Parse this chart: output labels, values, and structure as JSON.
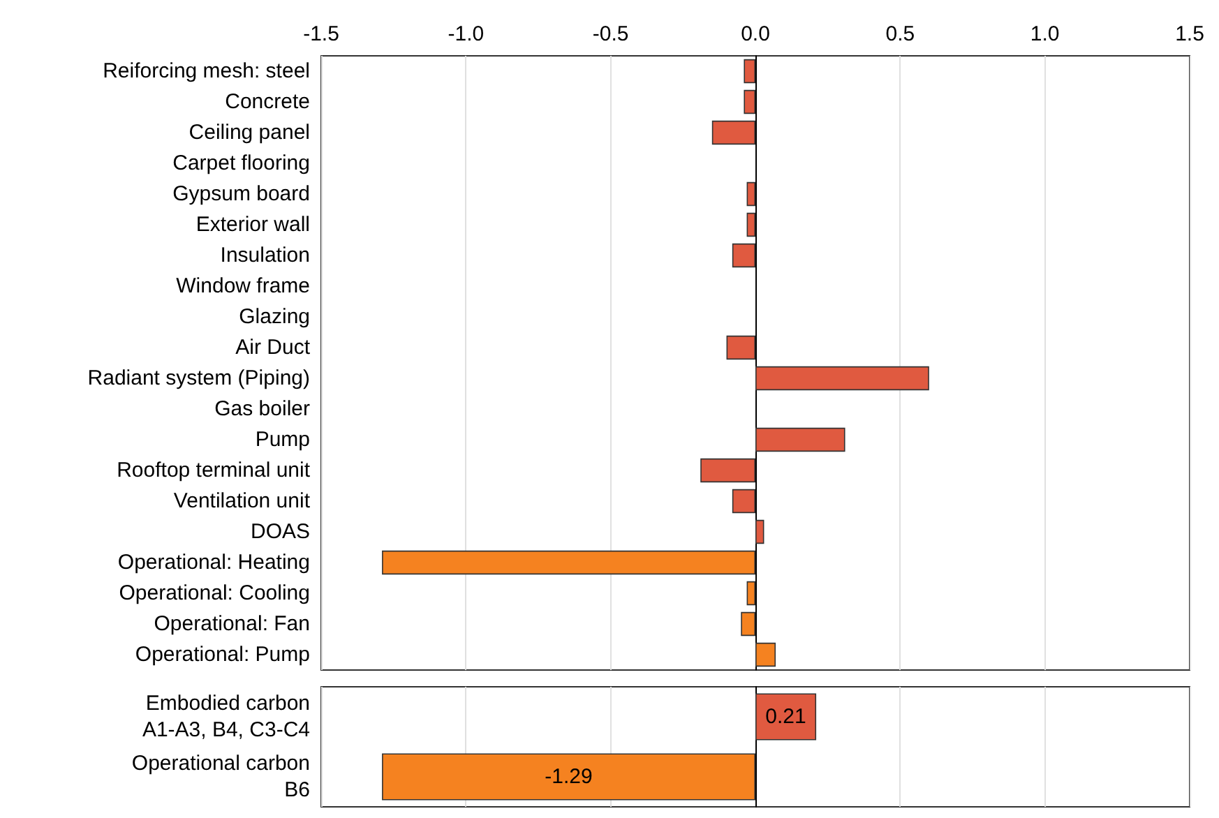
{
  "chart_data": [
    {
      "type": "bar",
      "orientation": "horizontal",
      "categories": [
        "Reiforcing mesh: steel",
        "Concrete",
        "Ceiling panel",
        "Carpet flooring",
        "Gypsum board",
        "Exterior wall",
        "Insulation",
        "Window frame",
        "Glazing",
        "Air Duct",
        "Radiant system (Piping)",
        "Gas boiler",
        "Pump",
        "Rooftop terminal unit",
        "Ventilation unit",
        "DOAS",
        "Operational: Heating",
        "Operational: Cooling",
        "Operational: Fan",
        "Operational: Pump"
      ],
      "values": [
        -0.04,
        -0.04,
        -0.15,
        null,
        -0.03,
        -0.03,
        -0.08,
        null,
        null,
        -0.1,
        0.6,
        null,
        0.31,
        -0.19,
        -0.08,
        0.03,
        -1.29,
        -0.03,
        -0.05,
        0.07
      ],
      "colors": [
        "#e05a40",
        "#e05a40",
        "#e05a40",
        "#e05a40",
        "#e05a40",
        "#e05a40",
        "#e05a40",
        "#e05a40",
        "#e05a40",
        "#e05a40",
        "#e05a40",
        "#e05a40",
        "#e05a40",
        "#e05a40",
        "#e05a40",
        "#e05a40",
        "#f58220",
        "#f58220",
        "#f58220",
        "#f58220"
      ],
      "xlim": [
        -1.5,
        1.5
      ],
      "xticks": [
        {
          "value": -1.5,
          "label": "-1.5"
        },
        {
          "value": -1,
          "label": "-1.0"
        },
        {
          "value": -0.5,
          "label": "-0.5"
        },
        {
          "value": 0,
          "label": "0.0"
        },
        {
          "value": 0.5,
          "label": "0.5"
        },
        {
          "value": 1,
          "label": "1.0"
        },
        {
          "value": 1.5,
          "label": "1.5"
        }
      ],
      "grid": "x"
    },
    {
      "type": "bar",
      "orientation": "horizontal",
      "categories": [
        "Embodied carbon\nA1-A3, B4, C3-C4",
        "Operational carbon\nB6"
      ],
      "values": [
        0.21,
        -1.29
      ],
      "colors": [
        "#e05a40",
        "#f58220"
      ],
      "data_labels": true,
      "xlim": [
        -1.5,
        1.5
      ],
      "xticks": [
        {
          "value": -1.5,
          "label": null
        },
        {
          "value": -1,
          "label": null
        },
        {
          "value": -0.5,
          "label": null
        },
        {
          "value": 0,
          "label": null
        },
        {
          "value": 0.5,
          "label": null
        },
        {
          "value": 1,
          "label": null
        },
        {
          "value": 1.5,
          "label": null
        }
      ],
      "grid": "x",
      "tick_labels": "y"
    }
  ]
}
